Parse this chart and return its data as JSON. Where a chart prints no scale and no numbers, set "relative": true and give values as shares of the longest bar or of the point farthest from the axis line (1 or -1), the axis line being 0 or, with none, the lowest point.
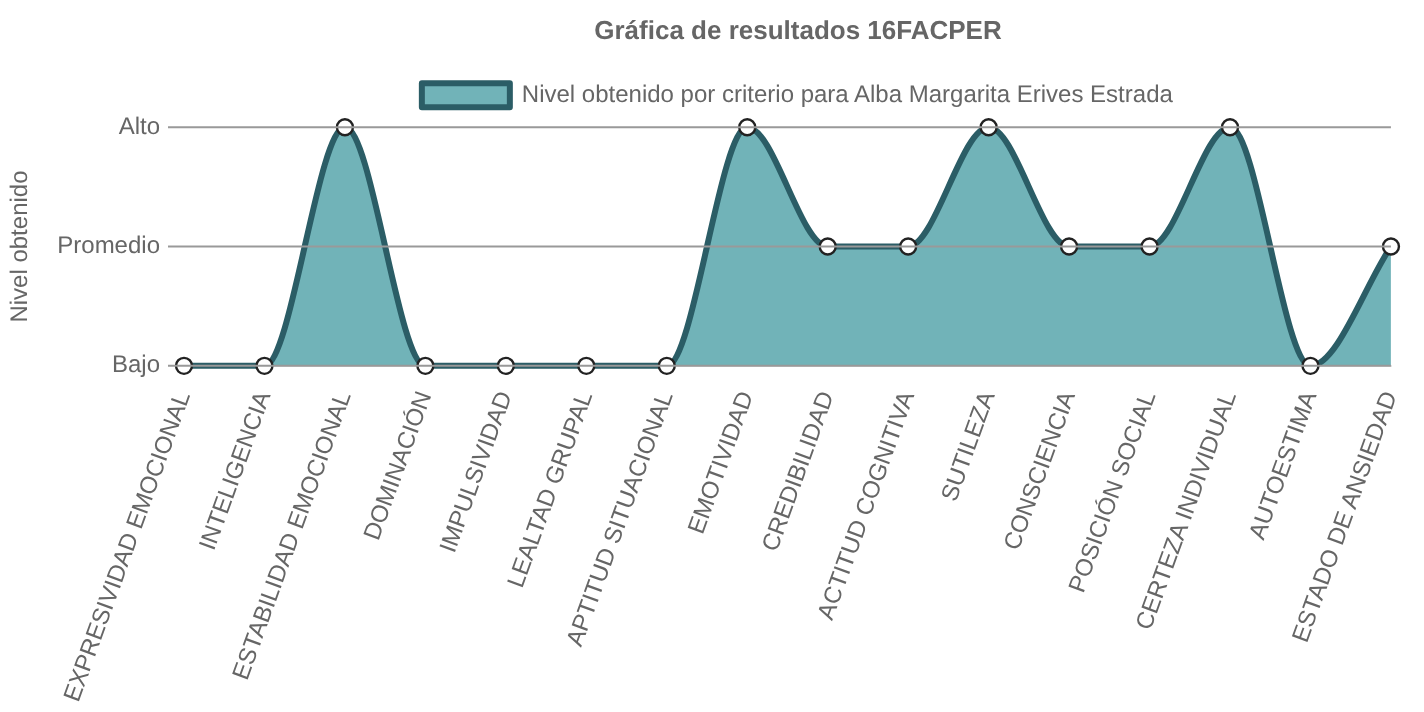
{
  "chart_data": {
    "type": "area",
    "title": "Gráfica de resultados 16FACPER",
    "ylabel": "Nivel obtenido",
    "categories": [
      "EXPRESIVIDAD EMOCIONAL",
      "INTELIGENCIA",
      "ESTABILIDAD EMOCIONAL",
      "DOMINACIÓN",
      "IMPULSIVIDAD",
      "LEALTAD GRUPAL",
      "APTITUD SITUACIONAL",
      "EMOTIVIDAD",
      "CREDIBILIDAD",
      "ACTITUD COGNITIVA",
      "SUTILEZA",
      "CONSCIENCIA",
      "POSICIÓN SOCIAL",
      "CERTEZA INDIVIDUAL",
      "AUTOESTIMA",
      "ESTADO DE ANSIEDAD"
    ],
    "series": [
      {
        "name": "Nivel obtenido por criterio para Alba Margarita Erives Estrada",
        "color": "#2b5d66",
        "values": [
          0,
          0,
          1,
          0,
          0,
          0,
          0,
          1,
          0.5,
          0.5,
          1,
          0.5,
          0.5,
          1,
          0,
          0.5
        ]
      }
    ],
    "relative": true,
    "ref_lines": [
      {
        "axis": "y",
        "value": 0,
        "label": "Bajo"
      },
      {
        "axis": "y",
        "value": 0.5,
        "label": "Promedio"
      },
      {
        "axis": "y",
        "value": 1,
        "label": "Alto"
      }
    ],
    "legend": "top",
    "marker": "circle"
  }
}
